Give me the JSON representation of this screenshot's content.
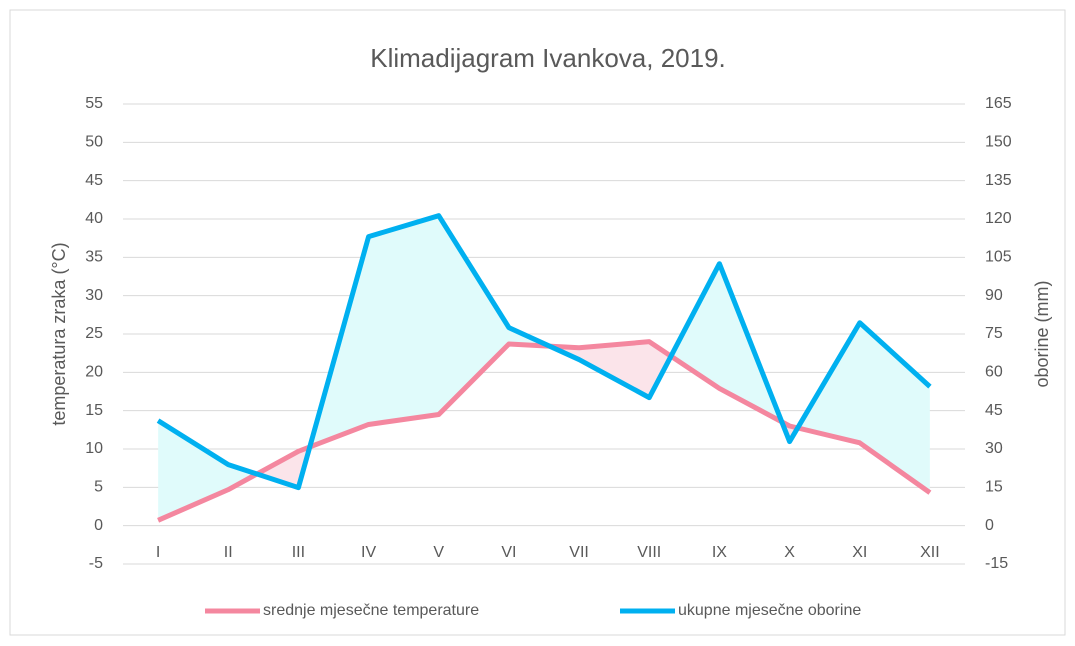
{
  "chart_data": {
    "type": "line",
    "title": "Klimadijagram Ivankova, 2019.",
    "ylabel": "temperatura zraka (°C)",
    "y2label": "oborine (mm)",
    "categories": [
      "I",
      "II",
      "III",
      "IV",
      "V",
      "VI",
      "VII",
      "VIII",
      "IX",
      "X",
      "XI",
      "XII"
    ],
    "series": [
      {
        "name": "srednje mjesečne temperature",
        "color": "#f4879f",
        "values": [
          0.7,
          4.7,
          9.7,
          13.2,
          14.5,
          23.7,
          23.2,
          24.0,
          17.9,
          13.0,
          10.8,
          4.3
        ]
      },
      {
        "name": "ukupne mjesečne oborine",
        "color": "#00b0f0",
        "axis": "y2",
        "values": [
          41.1,
          23.9,
          14.9,
          113.1,
          121.3,
          77.5,
          65.0,
          50.1,
          102.5,
          32.9,
          79.4,
          54.4
        ]
      }
    ],
    "ylim": [
      -5,
      55
    ],
    "yticks": [
      -5,
      0,
      5,
      10,
      15,
      20,
      25,
      30,
      35,
      40,
      45,
      50,
      55
    ],
    "y2lim": [
      -15,
      165
    ],
    "y2ticks": [
      -15,
      0,
      15,
      30,
      45,
      60,
      75,
      90,
      105,
      120,
      135,
      150,
      165
    ],
    "grid": true,
    "legend": "bottom"
  }
}
